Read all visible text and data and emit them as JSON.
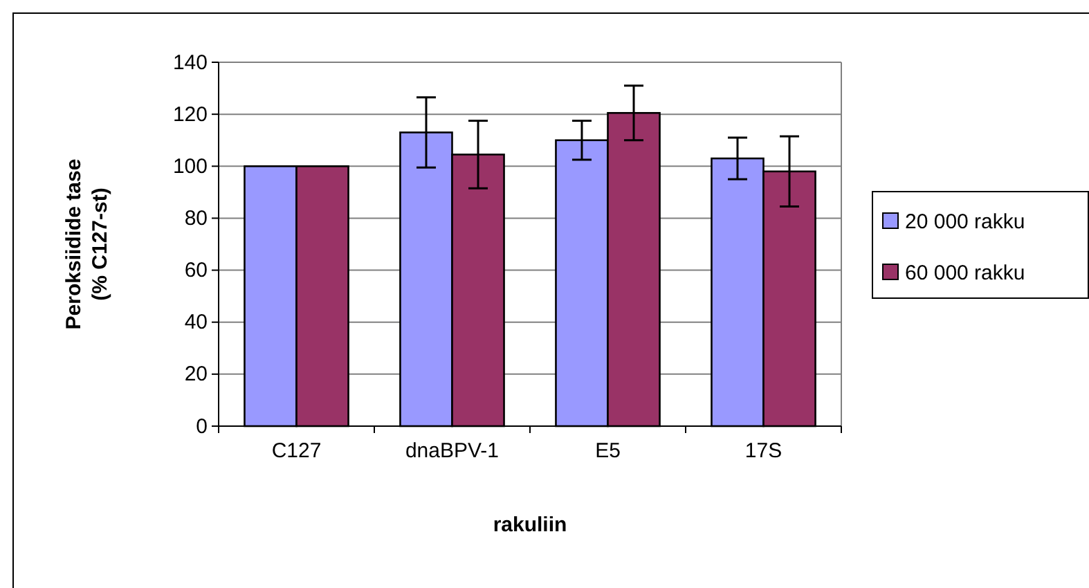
{
  "chart_data": {
    "type": "bar",
    "ylabel": "Peroksiidide tase\n(% C127-st)",
    "xlabel": "rakuliin",
    "categories": [
      "C127",
      "dnaBPV-1",
      "E5",
      "17S"
    ],
    "series": [
      {
        "name": "20 000 rakku",
        "color": "#9999ff",
        "values": [
          100,
          113,
          110,
          103
        ],
        "errors": [
          null,
          13.5,
          7.5,
          8
        ]
      },
      {
        "name": "60 000 rakku",
        "color": "#993366",
        "values": [
          100,
          104.5,
          120.5,
          98
        ],
        "errors": [
          null,
          13,
          10.5,
          13.5
        ]
      }
    ],
    "ylim": [
      0,
      140
    ],
    "yticks": [
      0,
      20,
      40,
      60,
      80,
      100,
      120,
      140
    ],
    "grid": "y",
    "legend": "right"
  }
}
